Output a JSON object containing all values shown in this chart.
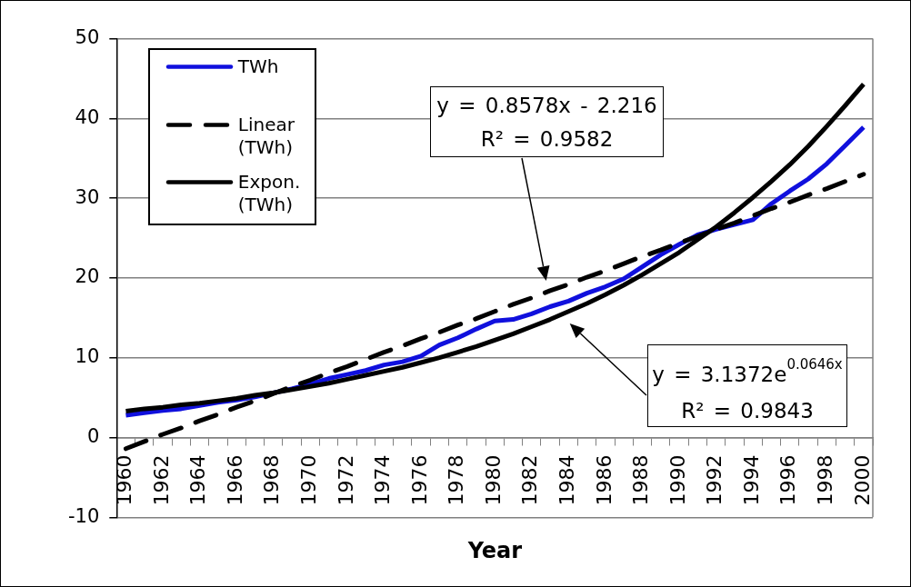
{
  "chart_data": {
    "type": "line",
    "xlabel": "Year",
    "categories": [
      "1960",
      null,
      "1962",
      null,
      "1964",
      null,
      "1966",
      null,
      "1968",
      null,
      "1970",
      null,
      "1972",
      null,
      "1974",
      null,
      "1976",
      null,
      "1978",
      null,
      "1980",
      null,
      "1982",
      null,
      "1984",
      null,
      "1986",
      null,
      "1988",
      null,
      "1990",
      null,
      "1992",
      null,
      "1994",
      null,
      "1996",
      null,
      "1998",
      null,
      "2000"
    ],
    "series": [
      {
        "name": "TWh",
        "color": "#1010dd",
        "line_style": "solid",
        "values": [
          2.8,
          3.1,
          3.4,
          3.6,
          4.0,
          4.4,
          4.7,
          5.1,
          5.6,
          6.1,
          6.7,
          7.4,
          7.9,
          8.4,
          9.1,
          9.5,
          10.2,
          11.6,
          12.5,
          13.6,
          14.6,
          14.8,
          15.5,
          16.4,
          17.1,
          18.1,
          18.9,
          19.9,
          21.4,
          22.9,
          24.2,
          25.4,
          26.1,
          26.7,
          27.3,
          29.3,
          30.9,
          32.4,
          34.3,
          36.6,
          38.9
        ]
      },
      {
        "name": "Linear (TWh)",
        "color": "#000000",
        "line_style": "dashed",
        "values": [
          -1.4,
          -0.5,
          0.4,
          1.2,
          2.1,
          2.9,
          3.8,
          4.6,
          5.5,
          6.4,
          7.2,
          8.1,
          8.9,
          9.8,
          10.7,
          11.5,
          12.4,
          13.2,
          14.1,
          14.9,
          15.8,
          16.7,
          17.5,
          18.4,
          19.2,
          20.1,
          20.9,
          21.8,
          22.7,
          23.5,
          24.4,
          25.2,
          26.1,
          26.9,
          27.8,
          28.7,
          29.5,
          30.4,
          31.2,
          32.1,
          33.0
        ]
      },
      {
        "name": "Expon. (TWh)",
        "color": "#000000",
        "line_style": "solid",
        "values": [
          3.3,
          3.6,
          3.8,
          4.1,
          4.3,
          4.6,
          4.9,
          5.3,
          5.6,
          6.0,
          6.4,
          6.8,
          7.3,
          7.8,
          8.3,
          8.8,
          9.4,
          10.0,
          10.7,
          11.4,
          12.2,
          13.0,
          13.9,
          14.8,
          15.8,
          16.8,
          17.9,
          19.1,
          20.4,
          21.8,
          23.2,
          24.8,
          26.4,
          28.2,
          30.1,
          32.1,
          34.2,
          36.5,
          39.0,
          41.6,
          44.3
        ]
      }
    ],
    "ylim": [
      -10,
      50
    ],
    "yticks": [
      -10,
      0,
      10,
      20,
      30,
      40,
      50
    ],
    "grid": "y",
    "legend": "top left",
    "marker": "none",
    "annotations": [
      "y = 0.8578x - 2.216\nR² = 0.9582",
      "y = 3.1372e$^{0.0646x}$\nR² = 0.9843"
    ]
  }
}
